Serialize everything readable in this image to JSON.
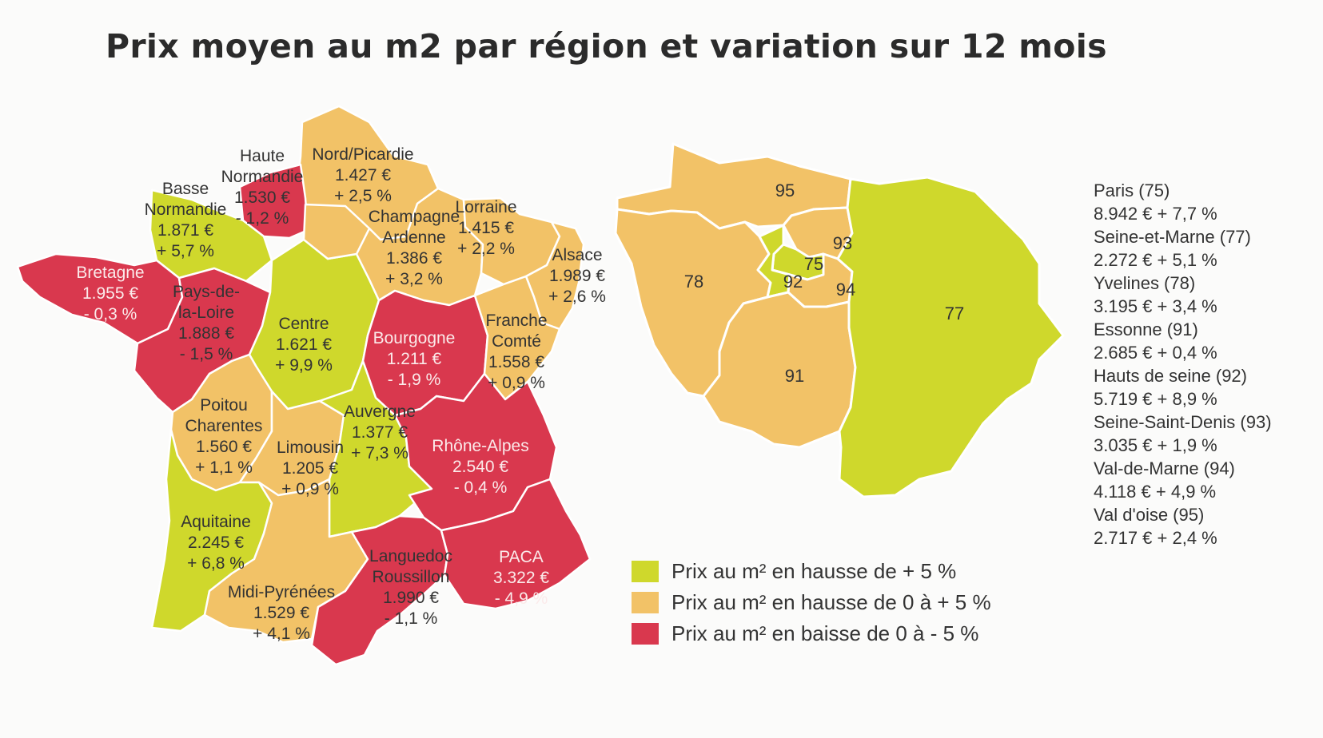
{
  "title": "Prix moyen au m2 par région et variation sur 12 mois",
  "colors": {
    "hausse_plus5": "#cfd82c",
    "hausse_0_5": "#f2c267",
    "baisse_0_5": "#d9384e"
  },
  "regions": [
    {
      "id": "nord-picardie",
      "lines": [
        "Nord/Picardie",
        "1.427 €",
        "+ 2,5 %"
      ],
      "category": "hausse_0_5"
    },
    {
      "id": "haute-normandie",
      "lines": [
        "Haute",
        "Normandie",
        "1.530 €",
        "- 1,2 %"
      ],
      "category": "baisse_0_5"
    },
    {
      "id": "basse-normandie",
      "lines": [
        "Basse",
        "Normandie",
        "1.871 €",
        "+ 5,7 %"
      ],
      "category": "hausse_plus5"
    },
    {
      "id": "bretagne",
      "lines": [
        "Bretagne",
        "1.955 €",
        "- 0,3 %"
      ],
      "category": "baisse_0_5"
    },
    {
      "id": "pays-de-la-loire",
      "lines": [
        "Pays-de-",
        "la-Loire",
        "1.888 €",
        "- 1,5 %"
      ],
      "category": "baisse_0_5"
    },
    {
      "id": "centre",
      "lines": [
        "Centre",
        "1.621 €",
        "+ 9,9 %"
      ],
      "category": "hausse_plus5"
    },
    {
      "id": "champagne-ardenne",
      "lines": [
        "Champagne",
        "Ardenne",
        "1.386 €",
        "+ 3,2 %"
      ],
      "category": "hausse_0_5"
    },
    {
      "id": "lorraine",
      "lines": [
        "Lorraine",
        "1.415 €",
        "+ 2,2 %"
      ],
      "category": "hausse_0_5"
    },
    {
      "id": "alsace",
      "lines": [
        "Alsace",
        "1.989 €",
        "+ 2,6 %"
      ],
      "category": "hausse_0_5"
    },
    {
      "id": "bourgogne",
      "lines": [
        "Bourgogne",
        "1.211 €",
        "- 1,9 %"
      ],
      "category": "baisse_0_5"
    },
    {
      "id": "franche-comte",
      "lines": [
        "Franche",
        "Comté",
        "1.558 €",
        "+ 0,9 %"
      ],
      "category": "hausse_0_5"
    },
    {
      "id": "poitou-charentes",
      "lines": [
        "Poitou",
        "Charentes",
        "1.560 €",
        "+ 1,1 %"
      ],
      "category": "hausse_0_5"
    },
    {
      "id": "limousin",
      "lines": [
        "Limousin",
        "1.205 €",
        "+ 0,9 %"
      ],
      "category": "hausse_0_5"
    },
    {
      "id": "auvergne",
      "lines": [
        "Auvergne",
        "1.377 €",
        "+ 7,3 %"
      ],
      "category": "hausse_plus5"
    },
    {
      "id": "rhone-alpes",
      "lines": [
        "Rhône-Alpes",
        "2.540 €",
        "- 0,4 %"
      ],
      "category": "baisse_0_5"
    },
    {
      "id": "aquitaine",
      "lines": [
        "Aquitaine",
        "2.245 €",
        "+ 6,8 %"
      ],
      "category": "hausse_plus5"
    },
    {
      "id": "midi-pyrenees",
      "lines": [
        "Midi-Pyrénées",
        "1.529 €",
        "+ 4,1 %"
      ],
      "category": "hausse_0_5"
    },
    {
      "id": "languedoc-roussillon",
      "lines": [
        "Languedoc",
        "Roussillon",
        "1.990 €",
        "- 1,1 %"
      ],
      "category": "baisse_0_5"
    },
    {
      "id": "paca",
      "lines": [
        "PACA",
        "3.322 €",
        "- 4,9 %"
      ],
      "category": "baisse_0_5"
    },
    {
      "id": "ile-de-france",
      "lines": [],
      "category": "hausse_0_5"
    }
  ],
  "idf_departements": [
    {
      "num": "95",
      "category": "hausse_0_5"
    },
    {
      "num": "78",
      "category": "hausse_0_5"
    },
    {
      "num": "93",
      "category": "hausse_0_5"
    },
    {
      "num": "75",
      "category": "hausse_plus5"
    },
    {
      "num": "92",
      "category": "hausse_plus5"
    },
    {
      "num": "94",
      "category": "hausse_0_5"
    },
    {
      "num": "91",
      "category": "hausse_0_5"
    },
    {
      "num": "77",
      "category": "hausse_plus5"
    }
  ],
  "idf_list": [
    {
      "name": "Paris (75)",
      "value": "8.942 € + 7,7 %"
    },
    {
      "name": "Seine-et-Marne (77)",
      "value": "2.272 € + 5,1 %"
    },
    {
      "name": "Yvelines (78)",
      "value": "3.195 € + 3,4 %"
    },
    {
      "name": "Essonne (91)",
      "value": "2.685 € + 0,4 %"
    },
    {
      "name": "Hauts de seine (92)",
      "value": "5.719 € + 8,9 %"
    },
    {
      "name": "Seine-Saint-Denis (93)",
      "value": "3.035 € + 1,9 %"
    },
    {
      "name": "Val-de-Marne (94)",
      "value": "4.118 € + 4,9 %"
    },
    {
      "name": "Val d'oise (95)",
      "value": "2.717 € + 2,4 %"
    }
  ],
  "legend": [
    {
      "label": "Prix au m² en hausse de + 5 %",
      "category": "hausse_plus5"
    },
    {
      "label": "Prix au m² en hausse de 0 à + 5 %",
      "category": "hausse_0_5"
    },
    {
      "label": "Prix au m² en baisse de 0 à - 5 %",
      "category": "baisse_0_5"
    }
  ]
}
